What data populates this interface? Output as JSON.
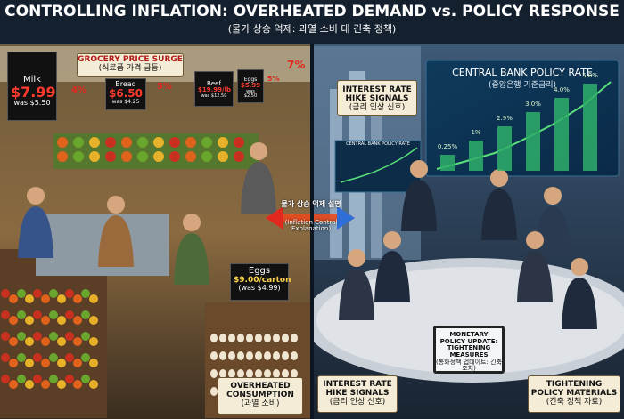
{
  "header": {
    "title": "CONTROLLING INFLATION: OVERHEATED DEMAND vs. POLICY RESPONSE",
    "subtitle": "(물가 상승 억제: 과열 소비 대 긴축 정책)"
  },
  "left": {
    "sign": {
      "title": "GROCERY PRICE SURGE",
      "subtitle": "(식료품 가격 급등)"
    },
    "tags": [
      {
        "name": "Milk",
        "price": "$7.99",
        "was": "was $5.50"
      },
      {
        "name": "Bread",
        "price": "$6.50",
        "was": "was $4.25"
      },
      {
        "name": "Beef",
        "price": "$19.99/lb",
        "was": "was $12.50"
      },
      {
        "name": "Eggs",
        "price": "$5.99",
        "was": "was $2.50"
      }
    ],
    "increases": [
      "4%",
      "5%",
      "5%",
      "7%"
    ],
    "egg_sign": {
      "name": "Eggs",
      "price": "$9.00/carton",
      "was": "(was $4.99)"
    },
    "caption": {
      "title": "OVERHEATED CONSUMPTION",
      "subtitle": "(과열 소비)"
    }
  },
  "center": {
    "title": "물가 상승 억제 설명",
    "subtitle": "(Inflation Control Explanation)"
  },
  "right": {
    "signal_sign": {
      "title": "INTEREST RATE HIKE SIGNALS",
      "subtitle": "(금리 인상 신호)"
    },
    "screen": {
      "title": "CENTRAL BANK POLICY RATE",
      "subtitle": "(중앙은행 기준금리)",
      "rate_labels": [
        "0.25%",
        "1%",
        "2.9%",
        "3.0%",
        "4.0%",
        "5.0%"
      ]
    },
    "small_screen": "CENTRAL BANK POLICY RATE",
    "tablet": {
      "title": "MONETARY POLICY UPDATE: TIGHTENING MEASURES",
      "subtitle": "(통화정책 업데이트: 긴축 조치)"
    },
    "caption_left": {
      "title": "INTEREST RATE HIKE SIGNALS",
      "subtitle": "(금리 인상 신호)"
    },
    "caption_right": {
      "title": "TIGHTENING POLICY MATERIALS",
      "subtitle": "(긴축 정책 자료)"
    }
  }
}
